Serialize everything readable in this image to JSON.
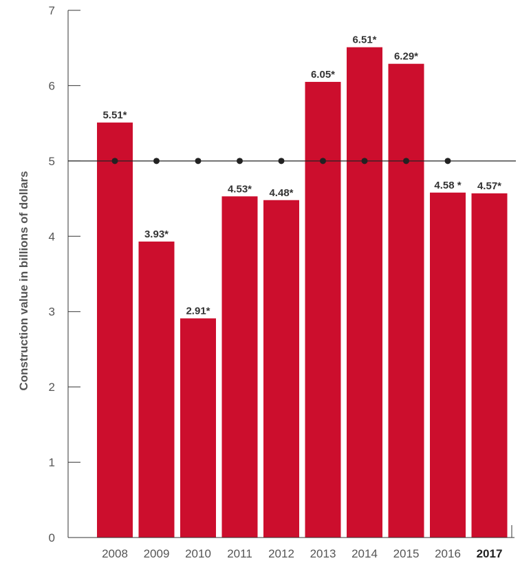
{
  "chart_data": {
    "type": "bar",
    "categories": [
      "2008",
      "2009",
      "2010",
      "2011",
      "2012",
      "2013",
      "2014",
      "2015",
      "2016",
      "2017"
    ],
    "values": [
      5.51,
      3.93,
      2.91,
      4.53,
      4.48,
      6.05,
      6.51,
      6.29,
      4.58,
      4.57
    ],
    "data_labels": [
      "5.51*",
      "3.93*",
      "2.91*",
      "4.53*",
      "4.48*",
      "6.05*",
      "6.51*",
      "6.29*",
      "4.58 *",
      "4.57*"
    ],
    "bold_categories": [
      "2017"
    ],
    "ylabel": "Construction value in billions of  dollars",
    "xlabel": "",
    "ylim": [
      0,
      7
    ],
    "yticks": [
      0,
      1,
      2,
      3,
      4,
      5,
      6,
      7
    ],
    "reference_line": {
      "value": 5,
      "markers": true
    },
    "bar_color": "#cc0e2d",
    "axis_color": "#333333",
    "reference_line_color": "#222222"
  }
}
